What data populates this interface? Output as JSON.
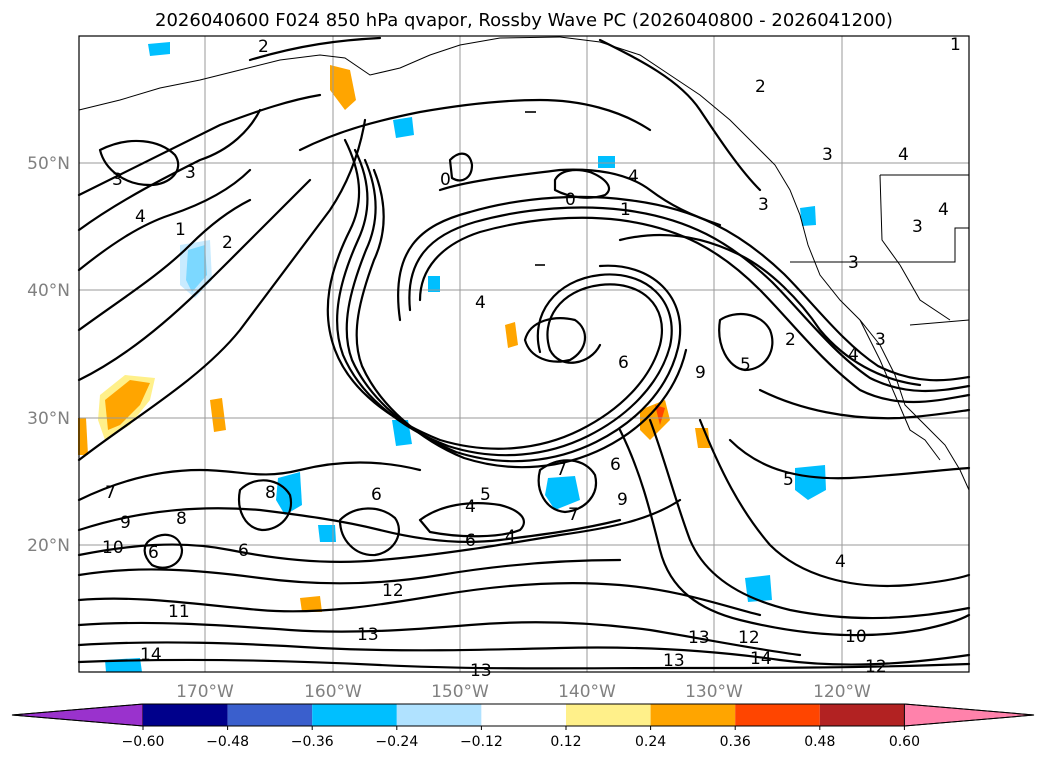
{
  "title": "2026040600 F024 850 hPa qvapor, Rossby Wave PC (2026040800 - 2026041200)",
  "lat_labels": [
    "50°N",
    "40°N",
    "30°N",
    "20°N"
  ],
  "lon_labels": [
    "170°W",
    "160°W",
    "150°W",
    "140°W",
    "130°W",
    "120°W"
  ],
  "colorbar": {
    "colors": [
      "#9a32cd",
      "#00008b",
      "#3a5fcd",
      "#00bfff",
      "#b0e2ff",
      "#ffffff",
      "#fff08a",
      "#ffa500",
      "#ff4500",
      "#b22222",
      "#ff82ab"
    ],
    "tick_labels": [
      "−0.60",
      "−0.48",
      "−0.36",
      "−0.24",
      "−0.12",
      "0.12",
      "0.24",
      "0.36",
      "0.48",
      "0.60"
    ]
  },
  "contour_labels": [
    "2",
    "3",
    "3",
    "4",
    "1",
    "2",
    "2",
    "3",
    "3",
    "4",
    "4",
    "3",
    "3",
    "0",
    "0",
    "4",
    "1",
    "3",
    "2",
    "4",
    "4",
    "9",
    "9",
    "6",
    "5",
    "6",
    "7",
    "4",
    "8",
    "6",
    "5",
    "7",
    "8",
    "6",
    "6",
    "9",
    "4",
    "7",
    "10",
    "6",
    "12",
    "11",
    "13",
    "14",
    "13",
    "13",
    "12",
    "14",
    "12",
    "10",
    "4",
    "5",
    "13",
    "1"
  ]
}
